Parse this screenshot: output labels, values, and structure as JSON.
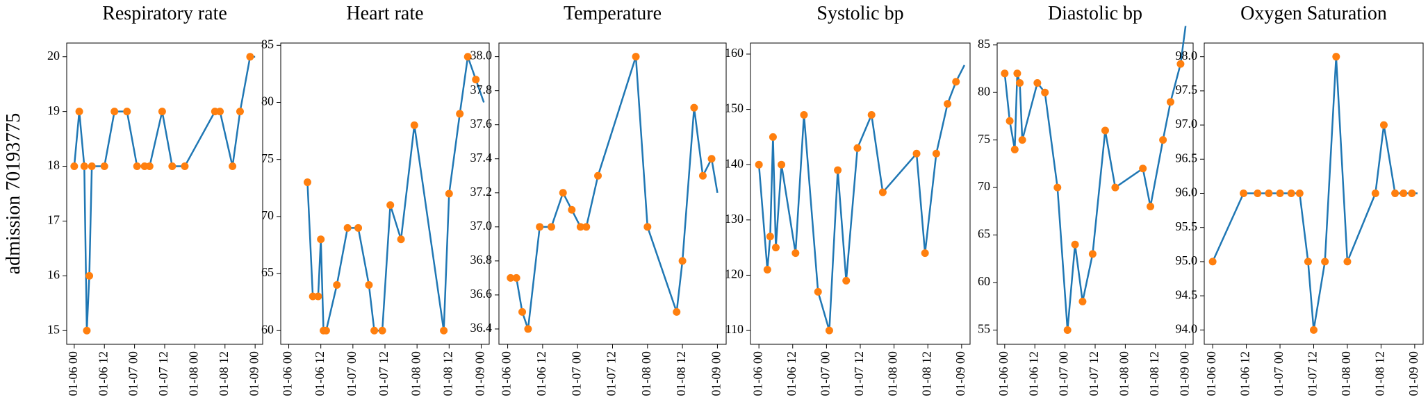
{
  "chart_data": [
    {
      "type": "line",
      "title": "Respiratory rate",
      "ylabel": "admission 70193775",
      "xlim": [
        "01-05 21",
        "01-09 03"
      ],
      "xticks": [
        "01-06 00",
        "01-06 12",
        "01-07 00",
        "01-07 12",
        "01-08 00",
        "01-08 12",
        "01-09 00"
      ],
      "ylim": [
        14.75,
        20.25
      ],
      "yticks": [
        15,
        16,
        17,
        18,
        19,
        20
      ],
      "series": [
        {
          "mode": "line",
          "color": "#1f77b4",
          "x": [
            "01-06 00",
            "01-06 02",
            "01-06 04",
            "01-06 05",
            "01-06 06",
            "01-06 07",
            "01-06 12",
            "01-06 16",
            "01-06 21",
            "01-07 01",
            "01-07 04",
            "01-07 06",
            "01-07 11",
            "01-07 15",
            "01-07 20",
            "01-08 08",
            "01-08 10",
            "01-08 15",
            "01-08 18",
            "01-08 22",
            "01-09 00"
          ],
          "values": [
            18,
            19,
            18,
            15,
            16,
            18,
            18,
            19,
            19,
            18,
            18,
            18,
            19,
            18,
            18,
            19,
            19,
            18,
            19,
            20,
            20
          ]
        },
        {
          "mode": "markers",
          "color": "#ff7f0e",
          "x": [
            "01-06 00",
            "01-06 02",
            "01-06 04",
            "01-06 05",
            "01-06 06",
            "01-06 07",
            "01-06 12",
            "01-06 16",
            "01-06 21",
            "01-07 01",
            "01-07 04",
            "01-07 06",
            "01-07 11",
            "01-07 15",
            "01-07 20",
            "01-08 08",
            "01-08 10",
            "01-08 15",
            "01-08 18",
            "01-08 22"
          ],
          "values": [
            18,
            19,
            18,
            15,
            16,
            18,
            18,
            19,
            19,
            18,
            18,
            18,
            19,
            18,
            18,
            19,
            19,
            18,
            19,
            20
          ]
        }
      ]
    },
    {
      "type": "line",
      "title": "Heart rate",
      "xlim": [
        "01-05 21",
        "01-09 03"
      ],
      "xticks": [
        "01-06 00",
        "01-06 12",
        "01-07 00",
        "01-07 12",
        "01-08 00",
        "01-08 12",
        "01-09 00"
      ],
      "ylim": [
        58.8,
        85.2
      ],
      "yticks": [
        60,
        65,
        70,
        75,
        80,
        85
      ],
      "series": [
        {
          "mode": "line",
          "color": "#1f77b4",
          "x": [
            "01-06 07",
            "01-06 09",
            "01-06 11",
            "01-06 12",
            "01-06 13",
            "01-06 14",
            "01-06 18",
            "01-06 22",
            "01-07 02",
            "01-07 06",
            "01-07 08",
            "01-07 11",
            "01-07 14",
            "01-07 18",
            "01-07 23",
            "01-08 10",
            "01-08 12",
            "01-08 16",
            "01-08 19",
            "01-08 22",
            "01-09 01"
          ],
          "values": [
            73,
            63,
            63,
            68,
            60,
            60,
            64,
            69,
            69,
            64,
            60,
            60,
            71,
            68,
            78,
            60,
            72,
            79,
            84,
            82,
            80
          ]
        },
        {
          "mode": "markers",
          "color": "#ff7f0e",
          "x": [
            "01-06 07",
            "01-06 09",
            "01-06 11",
            "01-06 12",
            "01-06 13",
            "01-06 14",
            "01-06 18",
            "01-06 22",
            "01-07 02",
            "01-07 06",
            "01-07 08",
            "01-07 11",
            "01-07 14",
            "01-07 18",
            "01-07 23",
            "01-08 10",
            "01-08 12",
            "01-08 16",
            "01-08 19",
            "01-08 22"
          ],
          "values": [
            73,
            63,
            63,
            68,
            60,
            60,
            64,
            69,
            69,
            64,
            60,
            60,
            71,
            68,
            78,
            60,
            72,
            79,
            84,
            82
          ]
        }
      ]
    },
    {
      "type": "line",
      "title": "Temperature",
      "xlim": [
        "01-05 21",
        "01-09 03"
      ],
      "xticks": [
        "01-06 00",
        "01-06 12",
        "01-07 00",
        "01-07 12",
        "01-08 00",
        "01-08 12",
        "01-09 00"
      ],
      "ylim": [
        36.31,
        38.08
      ],
      "yticks": [
        36.4,
        36.6,
        36.8,
        {
          "value": 37,
          "label": "37.0"
        },
        37.2,
        37.4,
        37.6,
        37.8,
        {
          "value": 38,
          "label": "38.0"
        }
      ],
      "series": [
        {
          "mode": "line",
          "color": "#1f77b4",
          "x": [
            "01-06 01",
            "01-06 03",
            "01-06 05",
            "01-06 07",
            "01-06 11",
            "01-06 15",
            "01-06 19",
            "01-06 22",
            "01-07 01",
            "01-07 03",
            "01-07 07",
            "01-07 20",
            "01-08 00",
            "01-08 10",
            "01-08 12",
            "01-08 16",
            "01-08 19",
            "01-08 22",
            "01-09 00"
          ],
          "values": [
            36.7,
            36.7,
            36.5,
            36.4,
            37.0,
            37.0,
            37.2,
            37.1,
            37.0,
            37.0,
            37.3,
            38.0,
            37.0,
            36.5,
            36.8,
            37.7,
            37.3,
            37.4,
            37.2
          ]
        },
        {
          "mode": "markers",
          "color": "#ff7f0e",
          "x": [
            "01-06 01",
            "01-06 03",
            "01-06 05",
            "01-06 07",
            "01-06 11",
            "01-06 15",
            "01-06 19",
            "01-06 22",
            "01-07 01",
            "01-07 03",
            "01-07 07",
            "01-07 20",
            "01-08 00",
            "01-08 10",
            "01-08 12",
            "01-08 16",
            "01-08 19",
            "01-08 22"
          ],
          "values": [
            36.7,
            36.7,
            36.5,
            36.4,
            37.0,
            37.0,
            37.2,
            37.1,
            37.0,
            37.0,
            37.3,
            38.0,
            37.0,
            36.5,
            36.8,
            37.7,
            37.3,
            37.4
          ]
        }
      ]
    },
    {
      "type": "line",
      "title": "Systolic bp",
      "xlim": [
        "01-05 21",
        "01-09 03"
      ],
      "xticks": [
        "01-06 00",
        "01-06 12",
        "01-07 00",
        "01-07 12",
        "01-08 00",
        "01-08 12",
        "01-09 00"
      ],
      "ylim": [
        107.5,
        162
      ],
      "yticks": [
        110,
        120,
        130,
        140,
        150,
        160
      ],
      "series": [
        {
          "mode": "line",
          "color": "#1f77b4",
          "x": [
            "01-06 00",
            "01-06 03",
            "01-06 04",
            "01-06 05",
            "01-06 06",
            "01-06 08",
            "01-06 13",
            "01-06 16",
            "01-06 21",
            "01-07 01",
            "01-07 04",
            "01-07 07",
            "01-07 11",
            "01-07 16",
            "01-07 20",
            "01-08 08",
            "01-08 11",
            "01-08 15",
            "01-08 19",
            "01-08 22",
            "01-09 01"
          ],
          "values": [
            140,
            121,
            127,
            145,
            125,
            140,
            124,
            149,
            117,
            110,
            139,
            119,
            143,
            149,
            135,
            142,
            124,
            142,
            151,
            155,
            158
          ]
        },
        {
          "mode": "markers",
          "color": "#ff7f0e",
          "x": [
            "01-06 00",
            "01-06 03",
            "01-06 04",
            "01-06 05",
            "01-06 06",
            "01-06 08",
            "01-06 13",
            "01-06 16",
            "01-06 21",
            "01-07 01",
            "01-07 04",
            "01-07 07",
            "01-07 11",
            "01-07 16",
            "01-07 20",
            "01-08 08",
            "01-08 11",
            "01-08 15",
            "01-08 19",
            "01-08 22"
          ],
          "values": [
            140,
            121,
            127,
            145,
            125,
            140,
            124,
            149,
            117,
            110,
            139,
            119,
            143,
            149,
            135,
            142,
            124,
            142,
            151,
            155
          ]
        }
      ]
    },
    {
      "type": "line",
      "title": "Diastolic bp",
      "xlim": [
        "01-05 21",
        "01-09 03"
      ],
      "xticks": [
        "01-06 00",
        "01-06 12",
        "01-07 00",
        "01-07 12",
        "01-08 00",
        "01-08 12",
        "01-09 00"
      ],
      "ylim": [
        53.5,
        85.2
      ],
      "yticks": [
        55,
        60,
        65,
        70,
        75,
        80,
        85
      ],
      "series": [
        {
          "mode": "line",
          "color": "#1f77b4",
          "x": [
            "01-06 00",
            "01-06 02",
            "01-06 04",
            "01-06 05",
            "01-06 06",
            "01-06 07",
            "01-06 13",
            "01-06 16",
            "01-06 21",
            "01-07 01",
            "01-07 04",
            "01-07 07",
            "01-07 11",
            "01-07 16",
            "01-07 20",
            "01-08 07",
            "01-08 10",
            "01-08 15",
            "01-08 18",
            "01-08 22",
            "01-09 00"
          ],
          "values": [
            82,
            77,
            74,
            82,
            81,
            75,
            81,
            80,
            70,
            55,
            64,
            58,
            63,
            76,
            70,
            72,
            68,
            75,
            79,
            83,
            87
          ]
        },
        {
          "mode": "markers",
          "color": "#ff7f0e",
          "x": [
            "01-06 00",
            "01-06 02",
            "01-06 04",
            "01-06 05",
            "01-06 06",
            "01-06 07",
            "01-06 13",
            "01-06 16",
            "01-06 21",
            "01-07 01",
            "01-07 04",
            "01-07 07",
            "01-07 11",
            "01-07 16",
            "01-07 20",
            "01-08 07",
            "01-08 10",
            "01-08 15",
            "01-08 18",
            "01-08 22"
          ],
          "values": [
            82,
            77,
            74,
            82,
            81,
            75,
            81,
            80,
            70,
            55,
            64,
            58,
            63,
            76,
            70,
            72,
            68,
            75,
            79,
            83
          ]
        }
      ]
    },
    {
      "type": "line",
      "title": "Oxygen Saturation",
      "xlim": [
        "01-05 21",
        "01-09 03"
      ],
      "xticks": [
        "01-06 00",
        "01-06 12",
        "01-07 00",
        "01-07 12",
        "01-08 00",
        "01-08 12",
        "01-09 00"
      ],
      "ylim": [
        93.79,
        98.2
      ],
      "yticks": [
        {
          "value": 94,
          "label": "94.0"
        },
        94.5,
        {
          "value": 95,
          "label": "95.0"
        },
        95.5,
        {
          "value": 96,
          "label": "96.0"
        },
        96.5,
        {
          "value": 97,
          "label": "97.0"
        },
        97.5,
        {
          "value": 98,
          "label": "98.0"
        }
      ],
      "series": [
        {
          "mode": "line",
          "color": "#1f77b4",
          "x": [
            "01-06 00",
            "01-06 11",
            "01-06 16",
            "01-06 20",
            "01-07 00",
            "01-07 04",
            "01-07 07",
            "01-07 10",
            "01-07 12",
            "01-07 16",
            "01-07 20",
            "01-08 00",
            "01-08 10",
            "01-08 13",
            "01-08 17",
            "01-08 20",
            "01-08 23",
            "01-09 01"
          ],
          "values": [
            95,
            96,
            96,
            96,
            96,
            96,
            96,
            95,
            94,
            95,
            98,
            95,
            96,
            97,
            96,
            96,
            96,
            96
          ]
        },
        {
          "mode": "markers",
          "color": "#ff7f0e",
          "x": [
            "01-06 00",
            "01-06 11",
            "01-06 16",
            "01-06 20",
            "01-07 00",
            "01-07 04",
            "01-07 07",
            "01-07 10",
            "01-07 12",
            "01-07 16",
            "01-07 20",
            "01-08 00",
            "01-08 10",
            "01-08 13",
            "01-08 17",
            "01-08 20",
            "01-08 23"
          ],
          "values": [
            95,
            96,
            96,
            96,
            96,
            96,
            96,
            95,
            94,
            95,
            98,
            95,
            96,
            97,
            96,
            96,
            96
          ]
        }
      ]
    }
  ]
}
